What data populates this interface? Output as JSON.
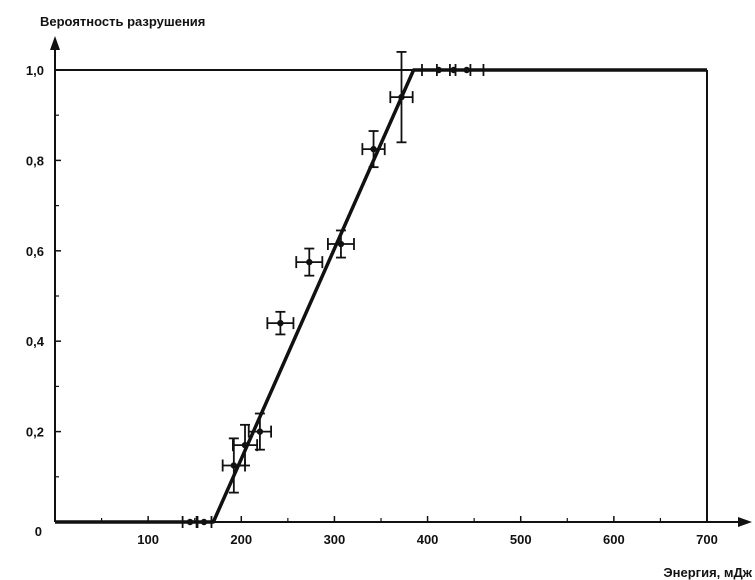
{
  "chart_data": {
    "type": "scatter",
    "ylabel": "Вероятность разрушения",
    "xlabel": "Энергия, мДж",
    "xlim": [
      0,
      700
    ],
    "ylim": [
      0,
      1.0
    ],
    "x_ticks": [
      "100",
      "200",
      "300",
      "400",
      "500",
      "600",
      "700"
    ],
    "y_ticks": [
      "0",
      "0,2",
      "0,4",
      "0,6",
      "0,8",
      "1,0"
    ],
    "grid": false,
    "legend": "none",
    "points": [
      {
        "x": 145,
        "y": 0.0,
        "xerr": 8,
        "yerr": 0.0
      },
      {
        "x": 160,
        "y": 0.0,
        "xerr": 8,
        "yerr": 0.0
      },
      {
        "x": 192,
        "y": 0.125,
        "xerr": 12,
        "yerr": 0.06
      },
      {
        "x": 204,
        "y": 0.17,
        "xerr": 13,
        "yerr": 0.045
      },
      {
        "x": 220,
        "y": 0.2,
        "xerr": 12,
        "yerr": 0.04
      },
      {
        "x": 242,
        "y": 0.44,
        "xerr": 14,
        "yerr": 0.025
      },
      {
        "x": 273,
        "y": 0.575,
        "xerr": 14,
        "yerr": 0.03
      },
      {
        "x": 307,
        "y": 0.615,
        "xerr": 14,
        "yerr": 0.03
      },
      {
        "x": 342,
        "y": 0.825,
        "xerr": 12,
        "yerr": 0.04
      },
      {
        "x": 372,
        "y": 0.94,
        "xerr": 12,
        "yerr": 0.1
      },
      {
        "x": 412,
        "y": 1.0,
        "xerr": 18,
        "yerr": 0.0
      },
      {
        "x": 428,
        "y": 1.0,
        "xerr": 18,
        "yerr": 0.0
      },
      {
        "x": 442,
        "y": 1.0,
        "xerr": 18,
        "yerr": 0.0
      }
    ],
    "fit_line": {
      "x": [
        0,
        170,
        385,
        700
      ],
      "y": [
        0,
        0,
        1.0,
        1.0
      ]
    },
    "colors": {
      "ink": "#111111",
      "background": "#ffffff"
    }
  }
}
